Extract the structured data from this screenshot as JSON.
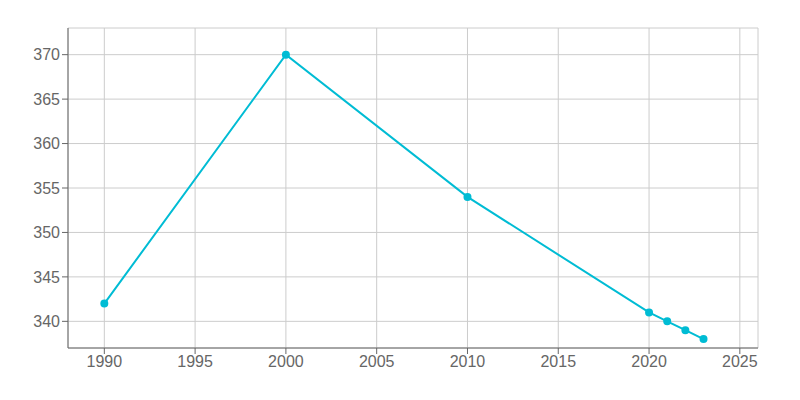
{
  "chart_data": {
    "type": "line",
    "x": [
      1990,
      2000,
      2010,
      2020,
      2021,
      2022,
      2023
    ],
    "values": [
      342,
      370,
      354,
      341,
      340,
      339,
      338
    ],
    "color": "#00bcd4",
    "marker": "circle",
    "xlim": [
      1988,
      2026
    ],
    "ylim": [
      337,
      373
    ],
    "xticks": [
      1990,
      1995,
      2000,
      2005,
      2010,
      2015,
      2020,
      2025
    ],
    "yticks": [
      340,
      345,
      350,
      355,
      360,
      365,
      370
    ],
    "grid": true
  }
}
